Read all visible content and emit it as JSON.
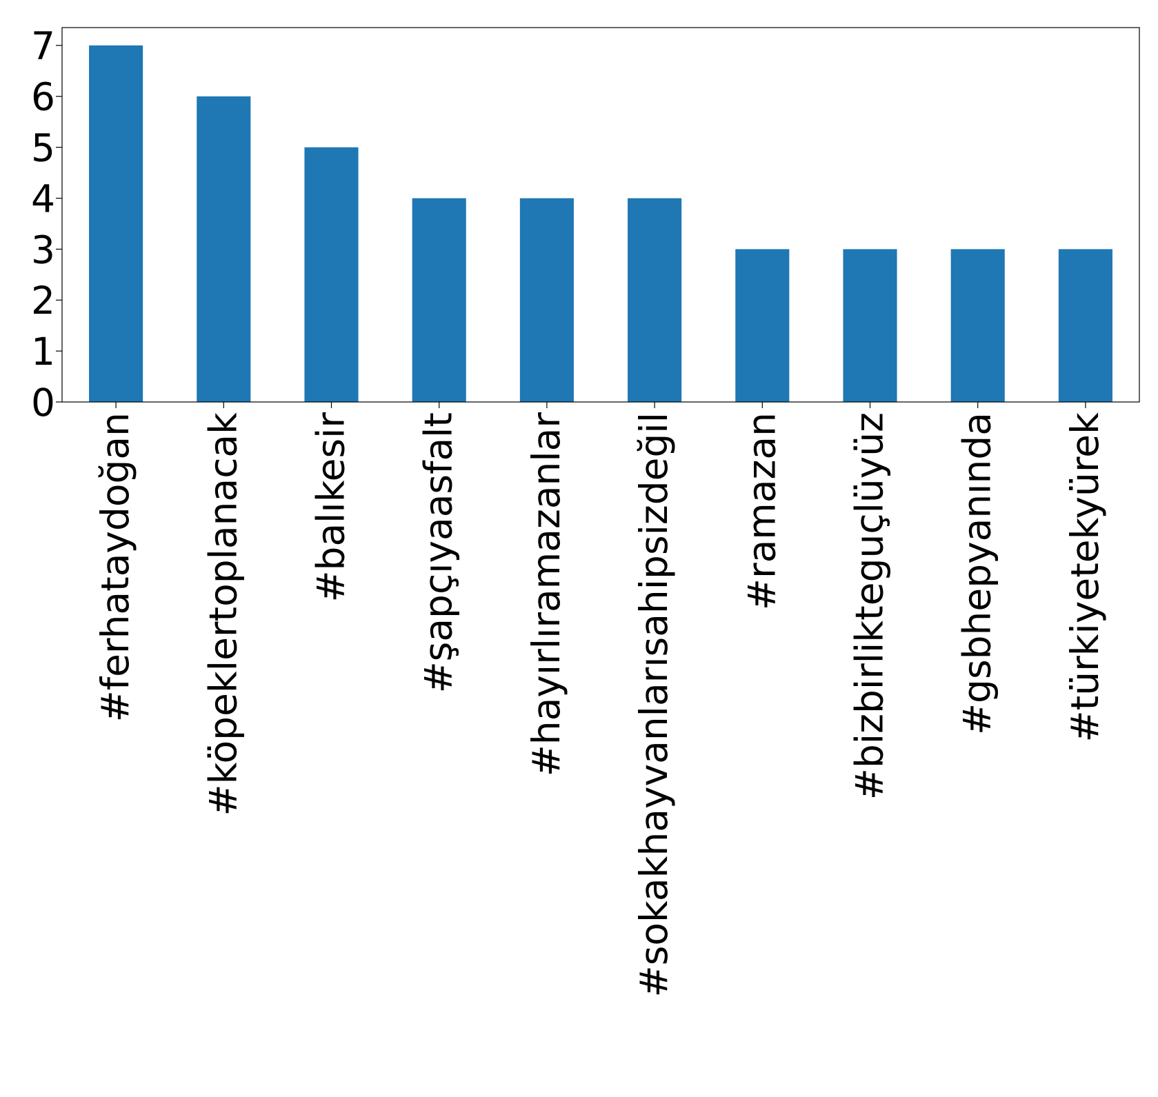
{
  "chart_data": {
    "type": "bar",
    "categories": [
      "#ferhataydoğan",
      "#köpeklertoplanacak",
      "#balıkesir",
      "#şapçıyaasfalt",
      "#hayırlıramazanlar",
      "#sokakhayvanlarısahipsizdeğil",
      "#ramazan",
      "#bizbirlikteguçlüyüz",
      "#gsbhepyanında",
      "#türkiyetekyürek"
    ],
    "values": [
      7,
      6,
      5,
      4,
      4,
      4,
      3,
      3,
      3,
      3
    ],
    "ylim": [
      0,
      7.35
    ],
    "yticks": [
      0,
      1,
      2,
      3,
      4,
      5,
      6,
      7
    ],
    "title": "",
    "xlabel": "",
    "ylabel": "",
    "grid": false,
    "legend": "none",
    "bar_color": "#1f77b4"
  }
}
